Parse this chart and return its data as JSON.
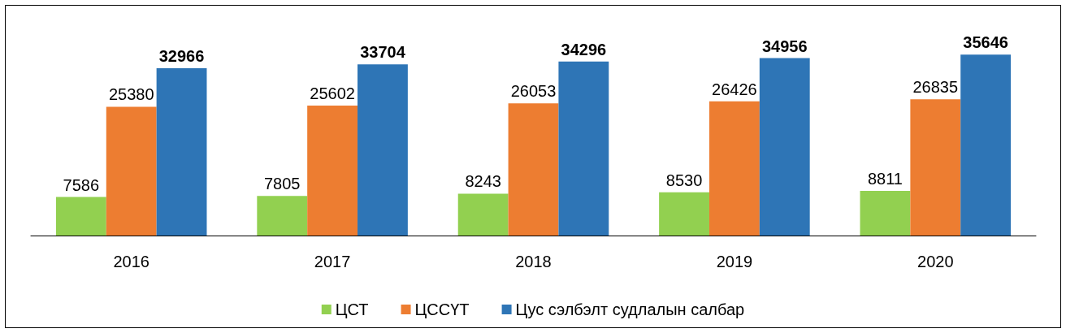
{
  "chart_data": {
    "type": "bar",
    "categories": [
      "2016",
      "2017",
      "2018",
      "2019",
      "2020"
    ],
    "series": [
      {
        "name": "ЦСТ",
        "color": "#92d050",
        "values": [
          7586,
          7805,
          8243,
          8530,
          8811
        ]
      },
      {
        "name": "ЦССҮТ",
        "color": "#ed7d31",
        "values": [
          25380,
          25602,
          26053,
          26426,
          26835
        ]
      },
      {
        "name": "Цус сэлбэлт судлалын салбар",
        "color": "#2e75b6",
        "values": [
          32966,
          33704,
          34296,
          34956,
          35646
        ]
      }
    ],
    "data_labels": true,
    "legend": "bottom",
    "tick_labels": "x"
  }
}
